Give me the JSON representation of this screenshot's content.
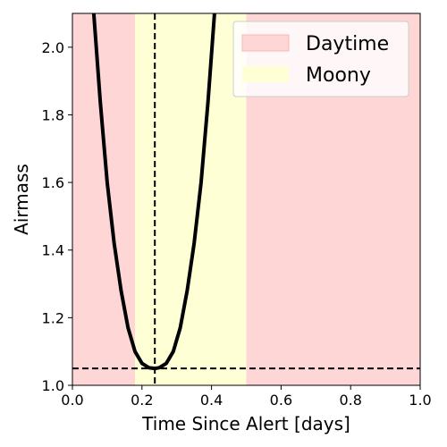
{
  "chart_data": {
    "type": "line",
    "title": "",
    "xlabel": "Time Since Alert [days]",
    "ylabel": "Airmass",
    "xlim": [
      0.0,
      1.0
    ],
    "ylim": [
      1.0,
      2.1
    ],
    "xticks": [
      "0.0",
      "0.2",
      "0.4",
      "0.6",
      "0.8",
      "1.0"
    ],
    "yticks": [
      "1.0",
      "1.2",
      "1.4",
      "1.6",
      "1.8",
      "2.0"
    ],
    "grid": false,
    "legend_position": "top-right",
    "legend": [
      {
        "label": "Daytime",
        "color": "#ffd6d6"
      },
      {
        "label": "Moony",
        "color": "#ffffd6"
      }
    ],
    "shaded_regions": [
      {
        "name": "Daytime",
        "x0": 0.0,
        "x1": 0.18,
        "color": "#ffd6d6"
      },
      {
        "name": "Moony",
        "x0": 0.18,
        "x1": 0.5,
        "color": "#ffffd6"
      },
      {
        "name": "Daytime",
        "x0": 0.5,
        "x1": 1.0,
        "color": "#ffd6d6"
      }
    ],
    "series": [
      {
        "color": "#000000",
        "x": [
          0.06,
          0.08,
          0.1,
          0.12,
          0.14,
          0.16,
          0.18,
          0.2,
          0.22,
          0.237,
          0.25,
          0.27,
          0.29,
          0.31,
          0.33,
          0.35,
          0.37,
          0.39,
          0.41
        ],
        "y": [
          2.12,
          1.84,
          1.6,
          1.42,
          1.28,
          1.17,
          1.1,
          1.065,
          1.052,
          1.05,
          1.052,
          1.065,
          1.1,
          1.17,
          1.28,
          1.42,
          1.6,
          1.84,
          2.12
        ]
      }
    ],
    "reference_lines": [
      {
        "orientation": "vertical",
        "value": 0.237,
        "style": "dashed",
        "color": "#000000"
      },
      {
        "orientation": "horizontal",
        "value": 1.05,
        "style": "dashed",
        "color": "#000000"
      }
    ]
  }
}
